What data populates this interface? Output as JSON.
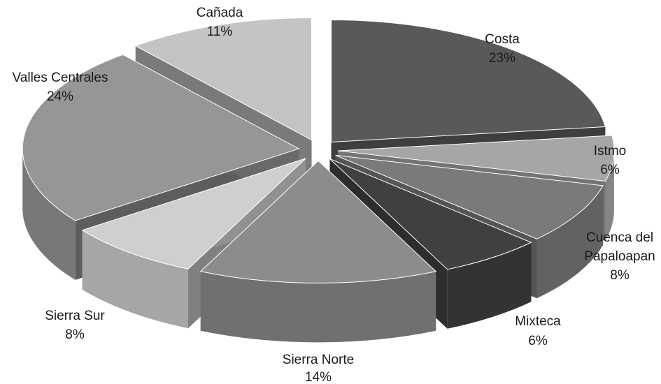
{
  "chart_data": {
    "type": "pie",
    "title": "",
    "slices": [
      {
        "label": "Costa",
        "value": 23,
        "percent_label": "23%",
        "color": "#595959"
      },
      {
        "label": "Istmo",
        "value": 6,
        "percent_label": "6%",
        "color": "#a6a6a6"
      },
      {
        "label_lines": [
          "Cuenca del",
          "Papaloapan"
        ],
        "value": 8,
        "percent_label": "8%",
        "color": "#7a7a7a"
      },
      {
        "label": "Mixteca",
        "value": 6,
        "percent_label": "6%",
        "color": "#404040"
      },
      {
        "label": "Sierra Norte",
        "value": 14,
        "percent_label": "14%",
        "color": "#8c8c8c"
      },
      {
        "label": "Sierra Sur",
        "value": 8,
        "percent_label": "8%",
        "color": "#cfcfcf"
      },
      {
        "label": "Valles Centrales",
        "value": 24,
        "percent_label": "24%",
        "color": "#969696"
      },
      {
        "label": "Cañada",
        "value": 11,
        "percent_label": "11%",
        "color": "#c4c4c4"
      }
    ],
    "exploded": true,
    "style": "3d-pie"
  }
}
